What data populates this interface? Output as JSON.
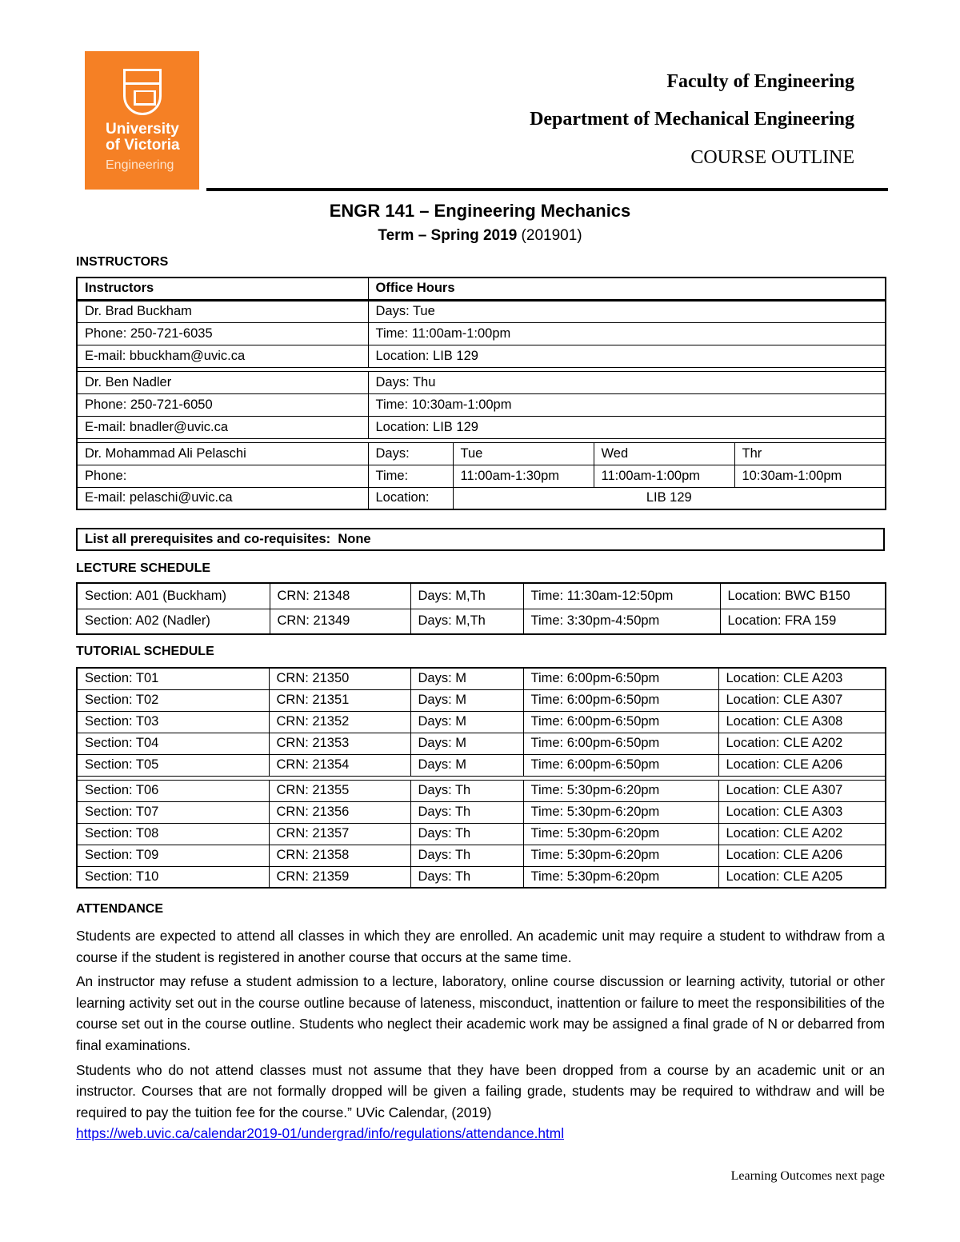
{
  "logo": {
    "line1": "University",
    "line2": "of Victoria",
    "line3": "Engineering",
    "color": "#F58025"
  },
  "header": {
    "faculty": "Faculty of Engineering",
    "department": "Department of Mechanical Engineering",
    "doc_type": "COURSE OUTLINE"
  },
  "course": {
    "title": "ENGR 141 – Engineering Mechanics",
    "term_label": "Term – Spring 2019",
    "term_code": "(201901)"
  },
  "instructors": {
    "heading": "INSTRUCTORS",
    "col_instructors": "Instructors",
    "col_office": "Office Hours",
    "simple": [
      {
        "name": "Dr. Brad Buckham",
        "phone": "Phone: 250-721-6035",
        "email": "E-mail: bbuckham@uvic.ca",
        "days": "Days: Tue",
        "time": "Time: 11:00am-1:00pm",
        "location": "Location: LIB 129"
      },
      {
        "name": "Dr. Ben Nadler",
        "phone": "Phone: 250-721-6050",
        "email": "E-mail: bnadler@uvic.ca",
        "days": "Days: Thu",
        "time": "Time: 10:30am-1:00pm",
        "location": "Location: LIB 129"
      }
    ],
    "pelaschi": {
      "name": "Dr. Mohammad Ali Pelaschi",
      "phone": "Phone:",
      "email": "E-mail: pelaschi@uvic.ca",
      "days_label": "Days:",
      "time_label": "Time:",
      "location_label": "Location:",
      "days": [
        "Tue",
        "Wed",
        "Thr"
      ],
      "times": [
        "11:00am-1:30pm",
        "11:00am-1:00pm",
        "10:30am-1:00pm"
      ],
      "location": "LIB 129"
    }
  },
  "prereq": "List all prerequisites and co-requisites:  None",
  "lecture": {
    "heading": "LECTURE SCHEDULE",
    "rows": [
      [
        "Section: A01 (Buckham)",
        "CRN: 21348",
        "Days: M,Th",
        "Time: 11:30am-12:50pm",
        "Location: BWC B150"
      ],
      [
        "Section: A02 (Nadler)",
        "CRN: 21349",
        "Days: M,Th",
        "Time: 3:30pm-4:50pm",
        "Location: FRA 159"
      ]
    ]
  },
  "tutorial": {
    "heading": "TUTORIAL SCHEDULE",
    "rows": [
      [
        "Section: T01",
        "CRN: 21350",
        "Days: M",
        "Time: 6:00pm-6:50pm",
        "Location: CLE A203"
      ],
      [
        "Section: T02",
        "CRN: 21351",
        "Days: M",
        "Time: 6:00pm-6:50pm",
        "Location: CLE A307"
      ],
      [
        "Section: T03",
        "CRN: 21352",
        "Days: M",
        "Time: 6:00pm-6:50pm",
        "Location: CLE A308"
      ],
      [
        "Section: T04",
        "CRN: 21353",
        "Days: M",
        "Time: 6:00pm-6:50pm",
        "Location: CLE A202"
      ],
      [
        "Section: T05",
        "CRN: 21354",
        "Days: M",
        "Time: 6:00pm-6:50pm",
        "Location: CLE A206"
      ],
      [
        "Section: T06",
        "CRN: 21355",
        "Days: Th",
        "Time: 5:30pm-6:20pm",
        "Location: CLE A307"
      ],
      [
        "Section: T07",
        "CRN: 21356",
        "Days: Th",
        "Time: 5:30pm-6:20pm",
        "Location: CLE A303"
      ],
      [
        "Section: T08",
        "CRN: 21357",
        "Days: Th",
        "Time: 5:30pm-6:20pm",
        "Location: CLE A202"
      ],
      [
        "Section: T09",
        "CRN: 21358",
        "Days: Th",
        "Time: 5:30pm-6:20pm",
        "Location: CLE A206"
      ],
      [
        "Section: T10",
        "CRN: 21359",
        "Days: Th",
        "Time: 5:30pm-6:20pm",
        "Location: CLE A205"
      ]
    ]
  },
  "attendance": {
    "heading": "ATTENDANCE",
    "paragraphs": [
      "Students are expected to attend all classes in which they are enrolled. An academic unit may require a student to withdraw from a course if the student is registered in another course that occurs at the same time.",
      "An instructor may refuse a student admission to a lecture, laboratory, online course discussion or learning activity, tutorial or other learning activity set out in the course outline because of lateness, misconduct, inattention or failure to meet the responsibilities of the course set out in the course outline. Students who neglect their academic work may be assigned a final grade of N or debarred from final examinations.",
      "Students who do not attend classes must not assume that they have been dropped from a course by an academic unit or an instructor. Courses that are not formally dropped will be given a failing grade, students may be required to withdraw and will be required to pay the tuition fee for the course.” UVic Calendar, (2019)"
    ],
    "link": "https://web.uvic.ca/calendar2019-01/undergrad/info/regulations/attendance.html"
  },
  "footer": "Learning Outcomes next page"
}
